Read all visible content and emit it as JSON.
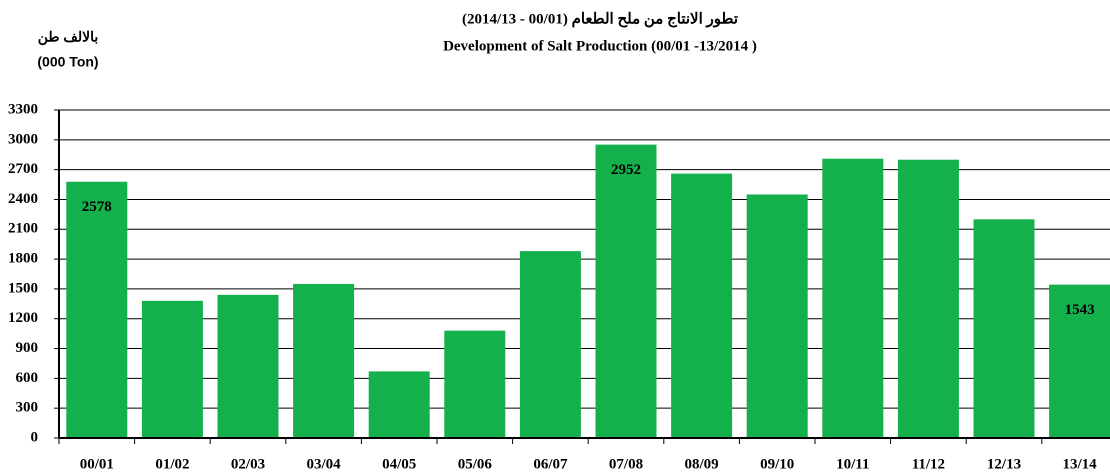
{
  "chart_data": {
    "type": "bar",
    "title": "تطور الانتاج من ملح الطعام  (00/01 - 2014/13)",
    "subtitle": "Development of Salt Production (00/01 -13/2014 )",
    "y_axis_label": [
      "بالالف طن",
      "(000 Ton)"
    ],
    "categories": [
      "00/01",
      "01/02",
      "02/03",
      "03/04",
      "04/05",
      "05/06",
      "06/07",
      "07/08",
      "08/09",
      "09/10",
      "10/11",
      "11/12",
      "12/13",
      "13/14"
    ],
    "values": [
      2578,
      1380,
      1440,
      1550,
      670,
      1080,
      1880,
      2952,
      2660,
      2450,
      2810,
      2800,
      2200,
      1543
    ],
    "value_labels": [
      "2578",
      null,
      null,
      null,
      null,
      null,
      null,
      "2952",
      null,
      null,
      null,
      null,
      null,
      "1543"
    ],
    "color": "#13b04b",
    "ylim": [
      0,
      3300
    ],
    "yticks": [
      0,
      300,
      600,
      900,
      1200,
      1500,
      1800,
      2100,
      2400,
      2700,
      3000,
      3300
    ],
    "grid": true
  }
}
